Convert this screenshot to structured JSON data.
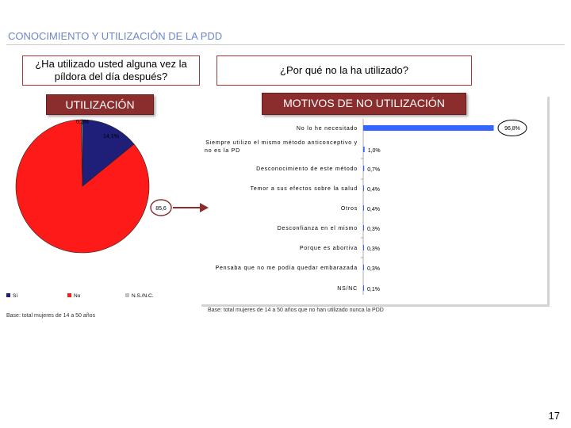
{
  "header": {
    "title": "CONOCIMIENTO Y UTILIZACIÓN DE LA PDD"
  },
  "left_question": "¿Ha utilizado usted alguna vez la píldora del día después?",
  "right_question": "¿Por qué no la ha utilizado?",
  "left_section": "UTILIZACIÓN",
  "right_section": "MOTIVOS DE NO UTILIZACIÓN",
  "left_base": "Base: total mujeres de 14 a 50 años",
  "right_base": "Base: total mujeres de 14 a 50 años que no han utilizado nunca la PDD",
  "page_number": "17",
  "colors": {
    "title": "#6f87c9",
    "accent_dark_red": "#8c2d2d",
    "arrow": "#8c2d2d",
    "pie_si": "#1f1f7a",
    "pie_no": "#ff1a1a",
    "pie_ns": "#c0c0c0",
    "bar": "#3366ff"
  },
  "chart_data": [
    {
      "type": "pie",
      "slices": [
        {
          "name": "Sí",
          "label": "14,1%",
          "value": 14.1
        },
        {
          "name": "No",
          "label": "85,6",
          "value": 85.6
        },
        {
          "name": "N.S./N.C.",
          "label": "0,3%",
          "value": 0.3
        }
      ],
      "legend": [
        "Sí",
        "No",
        "N.S./N.C."
      ],
      "legend_position": "bottom"
    },
    {
      "type": "bar",
      "orientation": "horizontal",
      "categories": [
        "No lo he necesitado",
        "Siempre utilizo el mismo método anticonceptivo y no es la PD",
        "Desconocimiento de este método",
        "Temor a sus efectos sobre la salud",
        "Otros",
        "Desconfianza en el mismo",
        "Porque es abortiva",
        "Pensaba que no me podía quedar embarazada",
        "NS/NC"
      ],
      "category_lines": [
        [
          "No lo he necesitado"
        ],
        [
          "Siempre utilizo el mismo método anticonceptivo y",
          "no es la PD"
        ],
        [
          "Desconocimiento de este método"
        ],
        [
          "Temor a sus efectos sobre la salud"
        ],
        [
          "Otros"
        ],
        [
          "Desconfianza en el mismo"
        ],
        [
          "Porque es abortiva"
        ],
        [
          "Pensaba que no me podía quedar embarazada"
        ],
        [
          "NS/NC"
        ]
      ],
      "values": [
        96.8,
        1.0,
        0.7,
        0.4,
        0.4,
        0.3,
        0.3,
        0.3,
        0.1
      ],
      "value_labels": [
        "96,8%",
        "1,0%",
        "0,7%",
        "0,4%",
        "0,4%",
        "0,3%",
        "0,3%",
        "0,3%",
        "0,1%"
      ],
      "xlim": [
        0,
        100
      ]
    }
  ]
}
